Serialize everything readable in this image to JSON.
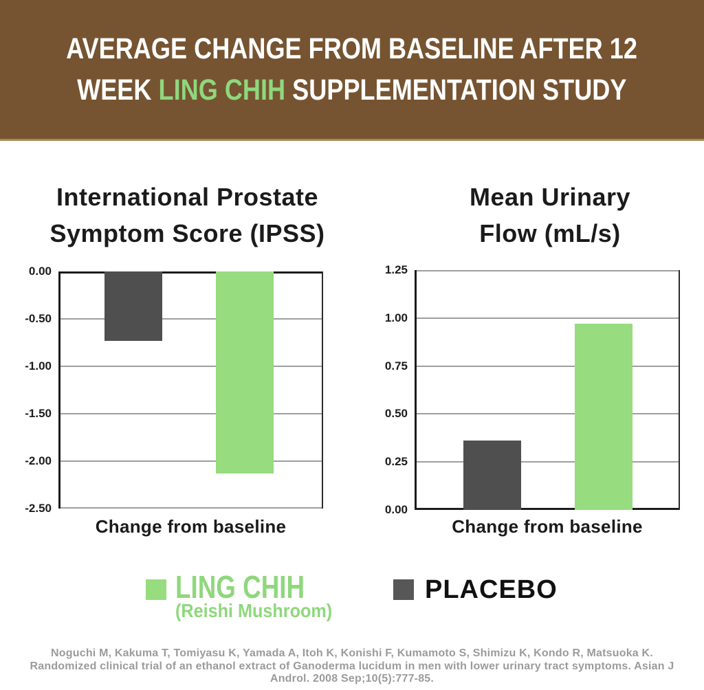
{
  "header": {
    "line1": "AVERAGE CHANGE FROM BASELINE AFTER 12",
    "line2_prefix": "WEEK ",
    "line2_highlight": "LING CHIH",
    "line2_suffix": " SUPPLEMENTATION STUDY"
  },
  "colors": {
    "header_brown": "#765431",
    "header_green": "#8FD77D",
    "green_bar": "#97DC7E",
    "gray_bar": "#4F4F4F",
    "gridline_gray": "#9E9E9E",
    "text_black": "#1B1B1B",
    "citation_gray": "#9B9B9B"
  },
  "chart_data": [
    {
      "type": "bar",
      "title_lines": [
        "International Prostate",
        "Symptom Score (IPSS)"
      ],
      "xlabel": "Change from baseline",
      "ylabel": "",
      "ylim": [
        -2.5,
        0
      ],
      "grid": true,
      "ticks": [
        {
          "value": 0,
          "label": "0.00"
        },
        {
          "value": -0.5,
          "label": "-0.50"
        },
        {
          "value": -1.0,
          "label": "-1.00"
        },
        {
          "value": -1.5,
          "label": "-1.50"
        },
        {
          "value": -2.0,
          "label": "-2.00"
        },
        {
          "value": -2.5,
          "label": "-2.50"
        }
      ],
      "series": [
        {
          "name": "PLACEBO",
          "value": -0.73,
          "color": "#4F4F4F"
        },
        {
          "name": "LING CHIH",
          "value": -2.13,
          "color": "#97DC7E"
        }
      ]
    },
    {
      "type": "bar",
      "title_lines": [
        "Mean Urinary",
        "Flow (mL/s)"
      ],
      "xlabel": "Change from baseline",
      "ylabel": "",
      "ylim": [
        0,
        1.25
      ],
      "grid": true,
      "ticks": [
        {
          "value": 1.25,
          "label": "1.25"
        },
        {
          "value": 1.0,
          "label": "1.00"
        },
        {
          "value": 0.75,
          "label": "0.75"
        },
        {
          "value": 0.5,
          "label": "0.50"
        },
        {
          "value": 0.25,
          "label": "0.25"
        },
        {
          "value": 0,
          "label": "0.00"
        }
      ],
      "series": [
        {
          "name": "PLACEBO",
          "value": 0.36,
          "color": "#4F4F4F"
        },
        {
          "name": "LING CHIH",
          "value": 0.97,
          "color": "#97DC7E"
        }
      ]
    }
  ],
  "legend": {
    "items": [
      {
        "label": "LING CHIH",
        "sublabel": "(Reishi Mushroom)",
        "color": "#97DC7E"
      },
      {
        "label": "PLACEBO",
        "sublabel": "",
        "color": "#575757"
      }
    ]
  },
  "citation": {
    "lines": [
      "Noguchi M, Kakuma T, Tomiyasu K, Yamada A, Itoh K, Konishi F, Kumamoto S, Shimizu K, Kondo R, Matsuoka K.",
      "Randomized clinical trial of an ethanol extract of Ganoderma lucidum in men with lower urinary tract symptoms. Asian J",
      "Androl. 2008 Sep;10(5):777-85."
    ]
  }
}
